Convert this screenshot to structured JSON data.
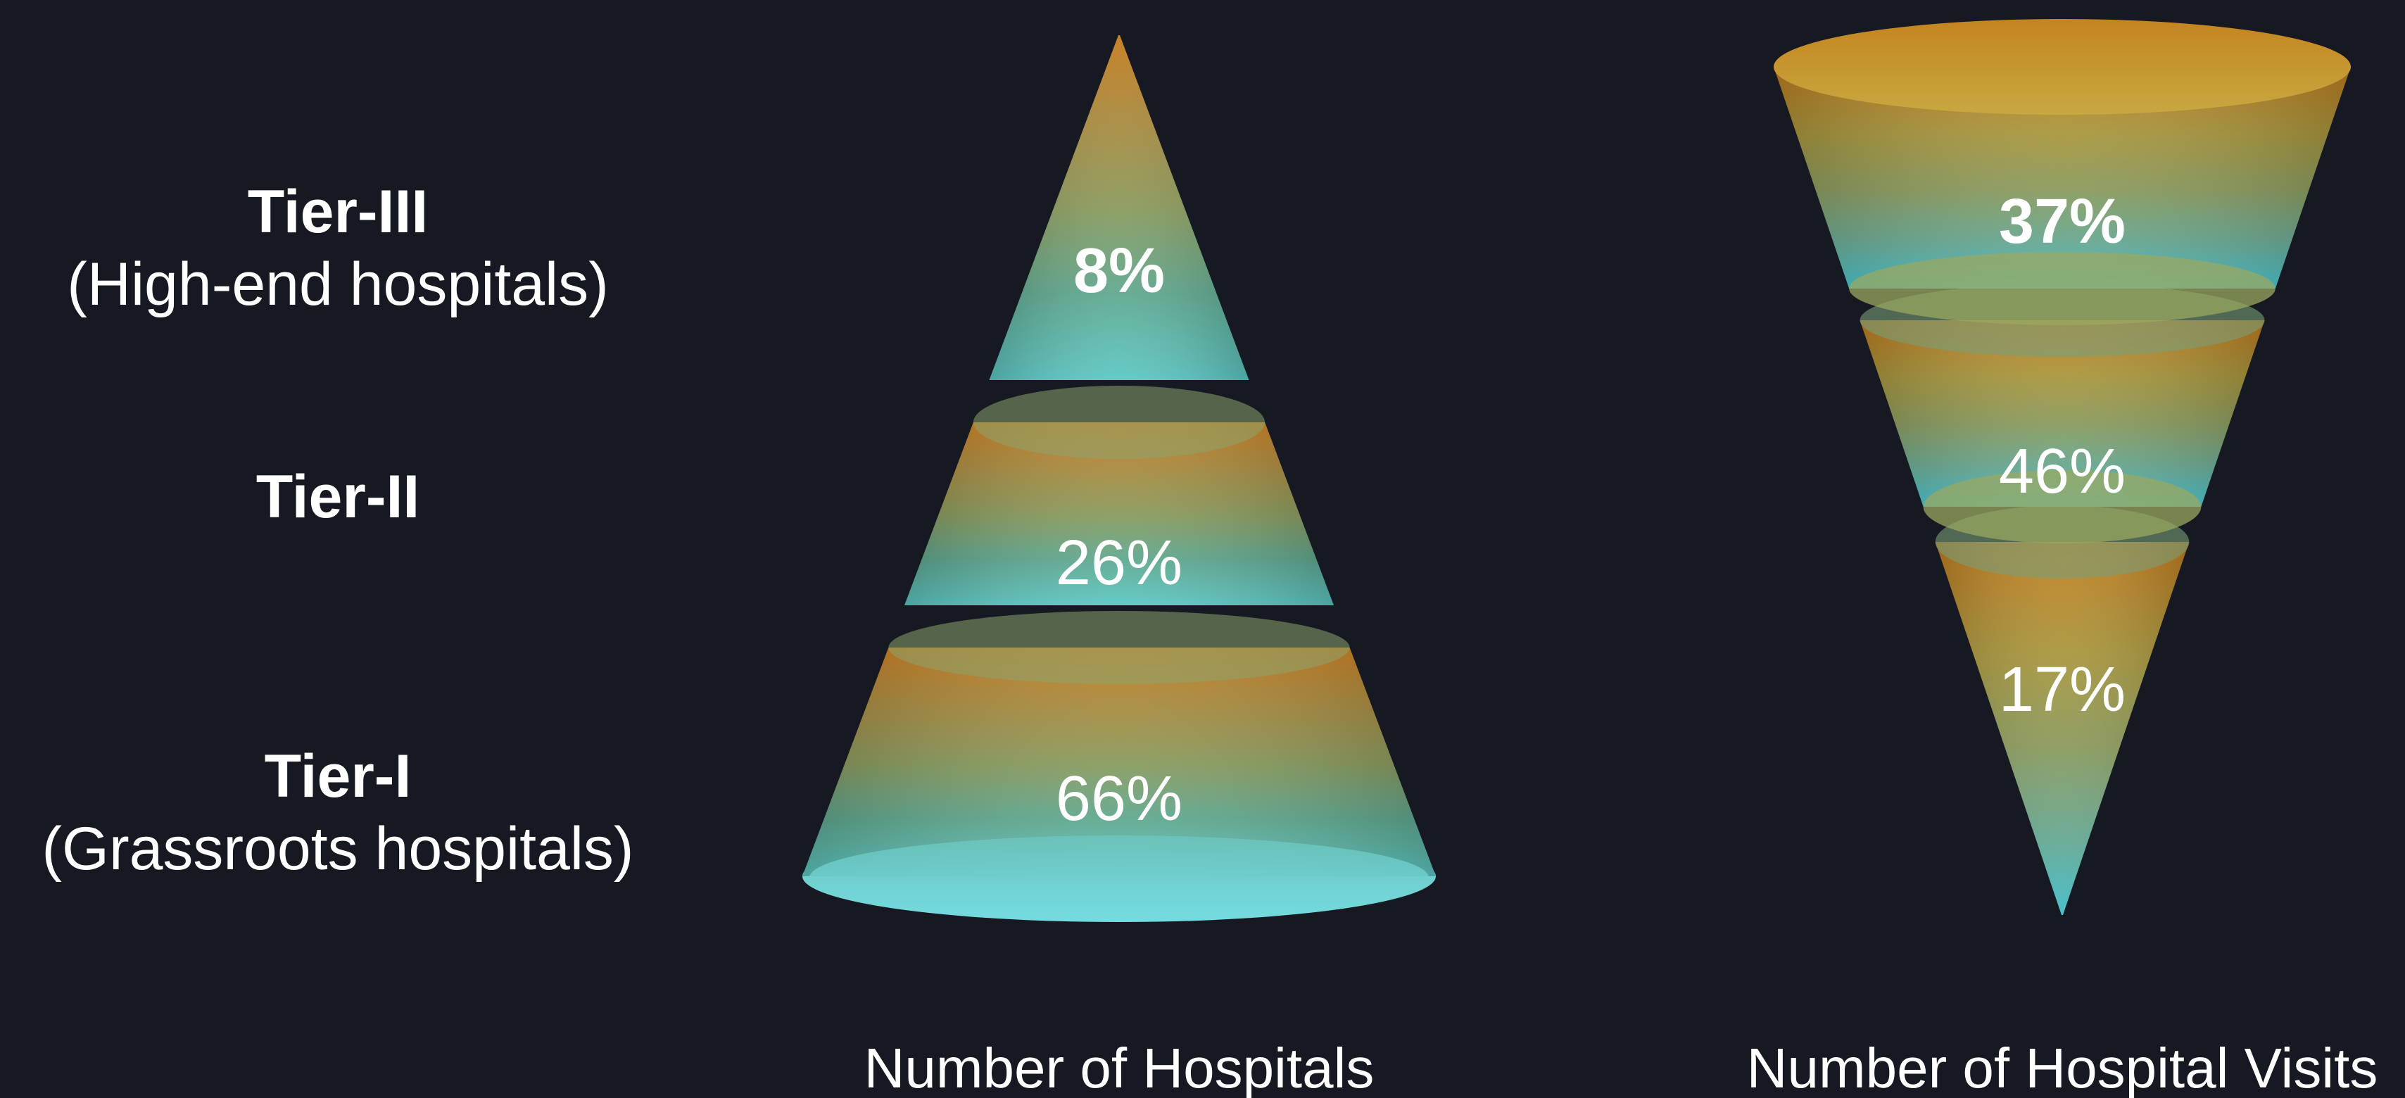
{
  "chart_data": [
    {
      "type": "pyramid",
      "xlabel": "Number of Hospitals",
      "categories": [
        "Tier-III",
        "Tier-II",
        "Tier-I"
      ],
      "values": [
        8,
        26,
        66
      ],
      "value_labels": [
        "8%",
        "26%",
        "66%"
      ],
      "bold_values": [
        true,
        false,
        false
      ]
    },
    {
      "type": "inverted-pyramid",
      "xlabel": "Number of Hospital Visits",
      "categories": [
        "Tier-III",
        "Tier-II",
        "Tier-I"
      ],
      "values": [
        37,
        46,
        17
      ],
      "value_labels": [
        "37%",
        "46%",
        "17%"
      ],
      "bold_values": [
        true,
        false,
        false
      ]
    }
  ],
  "tiers": [
    {
      "name": "Tier-III",
      "desc": "(High-end hospitals)"
    },
    {
      "name": "Tier-II",
      "desc": ""
    },
    {
      "name": "Tier-I",
      "desc": "(Grassroots hospitals)"
    }
  ],
  "colors": {
    "background": "#161822",
    "orange": "#c47a1c",
    "olive": "#8a9a5c",
    "teal": "#54a896",
    "cyan": "#5fd2d8"
  }
}
